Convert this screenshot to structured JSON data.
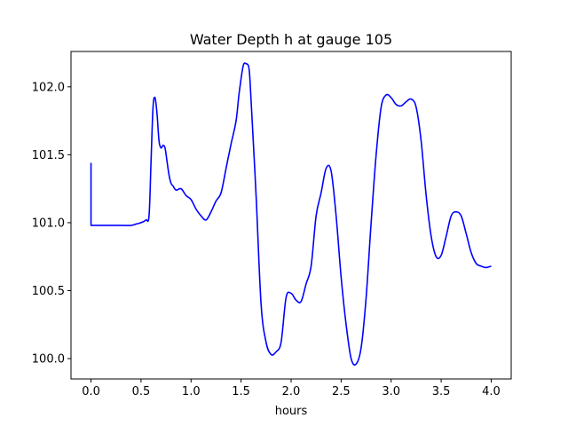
{
  "chart_data": {
    "type": "line",
    "title": "Water Depth h at gauge 105",
    "xlabel": "hours",
    "ylabel": "",
    "xlim": [
      -0.2,
      4.2
    ],
    "ylim": [
      99.85,
      102.26
    ],
    "xticks": [
      0.0,
      0.5,
      1.0,
      1.5,
      2.0,
      2.5,
      3.0,
      3.5,
      4.0
    ],
    "xtick_labels": [
      "0.0",
      "0.5",
      "1.0",
      "1.5",
      "2.0",
      "2.5",
      "3.0",
      "3.5",
      "4.0"
    ],
    "yticks": [
      100.0,
      100.5,
      101.0,
      101.5,
      102.0
    ],
    "ytick_labels": [
      "100.0",
      "100.5",
      "101.0",
      "101.5",
      "102.0"
    ],
    "grid": false,
    "legend": "none",
    "series": [
      {
        "color": "#0000ff",
        "x": [
          0.0,
          0.0,
          0.1,
          0.2,
          0.3,
          0.4,
          0.45,
          0.5,
          0.55,
          0.58,
          0.6,
          0.62,
          0.64,
          0.66,
          0.68,
          0.7,
          0.72,
          0.74,
          0.76,
          0.78,
          0.8,
          0.82,
          0.85,
          0.9,
          0.95,
          1.0,
          1.05,
          1.1,
          1.15,
          1.2,
          1.25,
          1.3,
          1.35,
          1.4,
          1.45,
          1.48,
          1.52,
          1.55,
          1.58,
          1.6,
          1.65,
          1.7,
          1.75,
          1.8,
          1.85,
          1.9,
          1.95,
          2.0,
          2.05,
          2.1,
          2.15,
          2.2,
          2.25,
          2.3,
          2.35,
          2.4,
          2.45,
          2.5,
          2.55,
          2.6,
          2.65,
          2.7,
          2.75,
          2.8,
          2.85,
          2.9,
          2.95,
          3.0,
          3.05,
          3.1,
          3.15,
          3.2,
          3.25,
          3.3,
          3.35,
          3.4,
          3.45,
          3.5,
          3.55,
          3.6,
          3.65,
          3.7,
          3.75,
          3.8,
          3.85,
          3.9,
          3.95,
          4.0
        ],
        "y": [
          101.44,
          100.98,
          100.98,
          100.98,
          100.98,
          100.98,
          100.99,
          101.0,
          101.02,
          101.05,
          101.45,
          101.85,
          101.92,
          101.8,
          101.6,
          101.55,
          101.57,
          101.55,
          101.45,
          101.35,
          101.29,
          101.27,
          101.24,
          101.25,
          101.2,
          101.17,
          101.1,
          101.05,
          101.02,
          101.08,
          101.16,
          101.22,
          101.4,
          101.58,
          101.75,
          101.95,
          102.15,
          102.17,
          102.13,
          101.9,
          101.2,
          100.4,
          100.12,
          100.03,
          100.05,
          100.12,
          100.45,
          100.48,
          100.43,
          100.42,
          100.55,
          100.68,
          101.05,
          101.22,
          101.4,
          101.38,
          101.05,
          100.6,
          100.25,
          100.0,
          99.96,
          100.08,
          100.45,
          101.0,
          101.5,
          101.85,
          101.94,
          101.92,
          101.87,
          101.86,
          101.89,
          101.91,
          101.85,
          101.6,
          101.2,
          100.9,
          100.75,
          100.76,
          100.9,
          101.05,
          101.08,
          101.05,
          100.92,
          100.78,
          100.7,
          100.68,
          100.67,
          100.68
        ]
      }
    ]
  }
}
